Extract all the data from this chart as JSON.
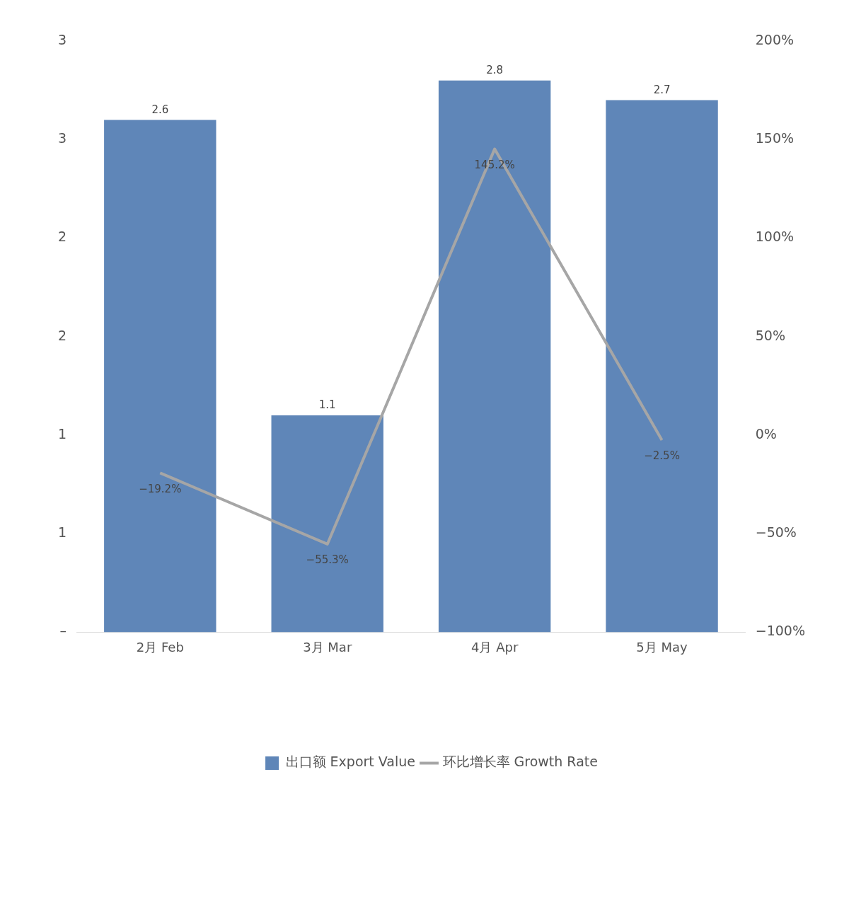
{
  "chart_data": {
    "type": "bar",
    "categories": [
      "2月 Feb",
      "3月 Mar",
      "4月 Apr",
      "5月 May"
    ],
    "series": [
      {
        "name": "出口额 Export Value",
        "color": "#5f86b8",
        "values": [
          2.6,
          1.1,
          2.8,
          2.7
        ],
        "value_labels": [
          "2.6",
          "1.1",
          "2.8",
          "2.7"
        ]
      },
      {
        "name": "环比增长率 Growth Rate",
        "type": "line",
        "axis": "y2",
        "color": "#a6a6a6",
        "values": [
          -19.2,
          -55.3,
          145.2,
          -2.5
        ],
        "value_labels": [
          "−19.2%",
          "−55.3%",
          "145.2%",
          "−2.5%"
        ]
      }
    ],
    "ylim": [
      0,
      3
    ],
    "yticks": [
      {
        "value": 0,
        "label": "–"
      },
      {
        "value": 0.5,
        "label": "1"
      },
      {
        "value": 1,
        "label": "1"
      },
      {
        "value": 1.5,
        "label": "2"
      },
      {
        "value": 2,
        "label": "2"
      },
      {
        "value": 2.5,
        "label": "3"
      },
      {
        "value": 3,
        "label": "3"
      }
    ],
    "y2lim": [
      -100,
      200
    ],
    "y2ticks": [
      {
        "value": -100,
        "label": "−100%"
      },
      {
        "value": -50,
        "label": "−50%"
      },
      {
        "value": 0,
        "label": "0%"
      },
      {
        "value": 50,
        "label": "50%"
      },
      {
        "value": 100,
        "label": "100%"
      },
      {
        "value": 150,
        "label": "150%"
      },
      {
        "value": 200,
        "label": "200%"
      }
    ],
    "grid": false,
    "legend": "bottom",
    "marker": "none",
    "line_style": "solid"
  }
}
